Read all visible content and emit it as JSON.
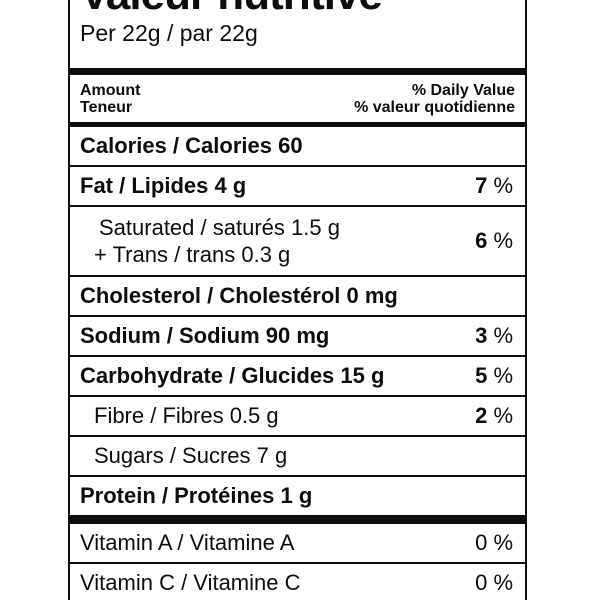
{
  "colors": {
    "ink": "#0d0d0d",
    "background": "#ffffff"
  },
  "nutrition_label": {
    "title_fr": "Valeur nutritive",
    "serving": "Per 22g / par 22g",
    "header": {
      "amount_en": "Amount",
      "amount_fr": "Teneur",
      "daily_value_en": "% Daily Value",
      "daily_value_fr": "% valeur quotidienne"
    },
    "rows": [
      {
        "name": "calories",
        "text": "Calories / Calories 60"
      },
      {
        "name": "fat",
        "text": "Fat / Lipides 4 g",
        "dv_num": "7",
        "dv_unit": "%"
      },
      {
        "name": "saturated-trans",
        "line1": "Saturated / saturés 1.5 g",
        "line2": "+ Trans / trans 0.3 g",
        "dv_num": "6",
        "dv_unit": "%"
      },
      {
        "name": "cholesterol",
        "text": "Cholesterol / Cholestérol 0 mg"
      },
      {
        "name": "sodium",
        "text": "Sodium / Sodium 90 mg",
        "dv_num": "3",
        "dv_unit": "%"
      },
      {
        "name": "carbohydrate",
        "text": "Carbohydrate / Glucides 15 g",
        "dv_num": "5",
        "dv_unit": "%"
      },
      {
        "name": "fibre",
        "text": "Fibre / Fibres 0.5 g",
        "dv_num": "2",
        "dv_unit": "%"
      },
      {
        "name": "sugars",
        "text": "Sugars / Sucres 7 g"
      },
      {
        "name": "protein",
        "text": "Protein / Protéines 1 g"
      },
      {
        "name": "vitamin-a",
        "text": "Vitamin A / Vitamine A",
        "dv_num": "0",
        "dv_unit": "%"
      },
      {
        "name": "vitamin-c",
        "text": "Vitamin C / Vitamine C",
        "dv_num": "0",
        "dv_unit": "%"
      }
    ]
  }
}
